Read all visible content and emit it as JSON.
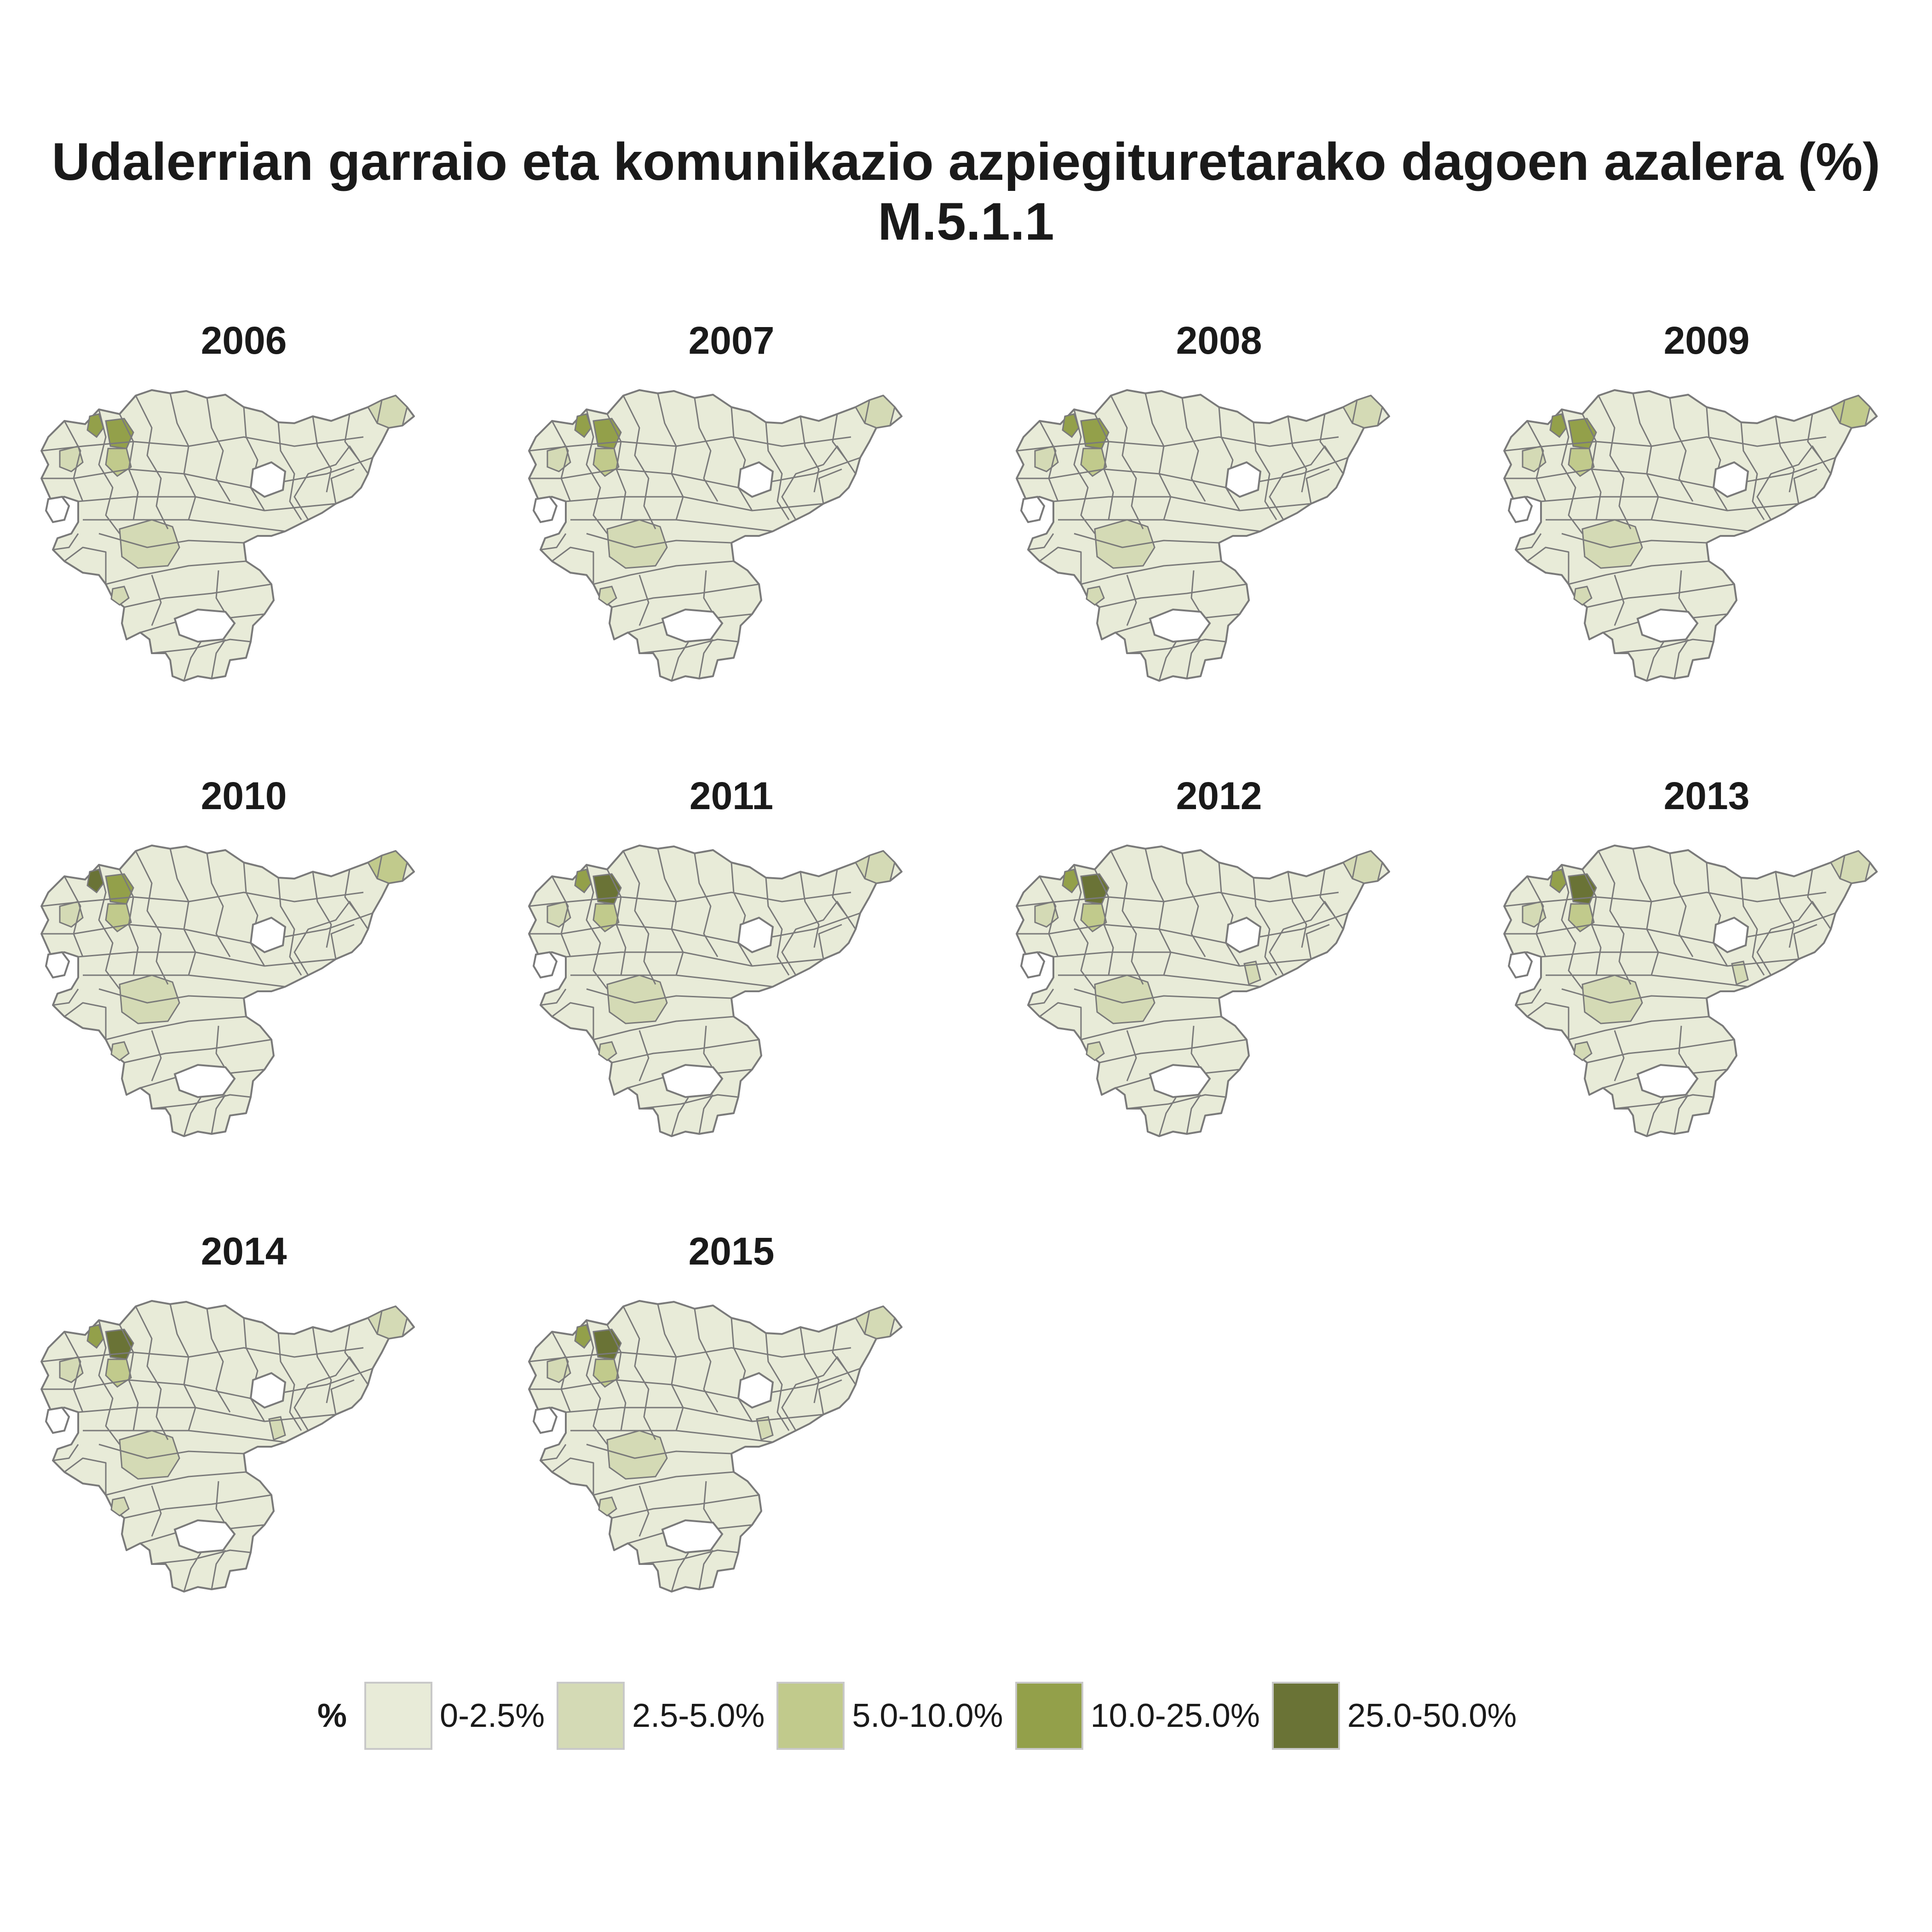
{
  "title": {
    "line1": "Udalerrian garraio eta komunikazio azpiegituretarako dagoen azalera (%)",
    "line2": "M.5.1.1"
  },
  "panels": [
    {
      "year": "2006"
    },
    {
      "year": "2007"
    },
    {
      "year": "2008"
    },
    {
      "year": "2009"
    },
    {
      "year": "2010"
    },
    {
      "year": "2011"
    },
    {
      "year": "2012"
    },
    {
      "year": "2013"
    },
    {
      "year": "2014"
    },
    {
      "year": "2015"
    }
  ],
  "legend": {
    "title": "%",
    "items": [
      {
        "label": "0-2.5%",
        "color": "#e8ebd8"
      },
      {
        "label": "2.5-5.0%",
        "color": "#d4dab5"
      },
      {
        "label": "5.0-10.0%",
        "color": "#c1ca8c"
      },
      {
        "label": "10.0-25.0%",
        "color": "#93a04a"
      },
      {
        "label": "25.0-50.0%",
        "color": "#6a7336"
      }
    ]
  },
  "colors": {
    "border": "#7a7a7a",
    "c0": "#e8ebd8",
    "c1": "#d4dab5",
    "c2": "#c1ca8c",
    "c3": "#93a04a",
    "c4": "#6a7336"
  }
}
